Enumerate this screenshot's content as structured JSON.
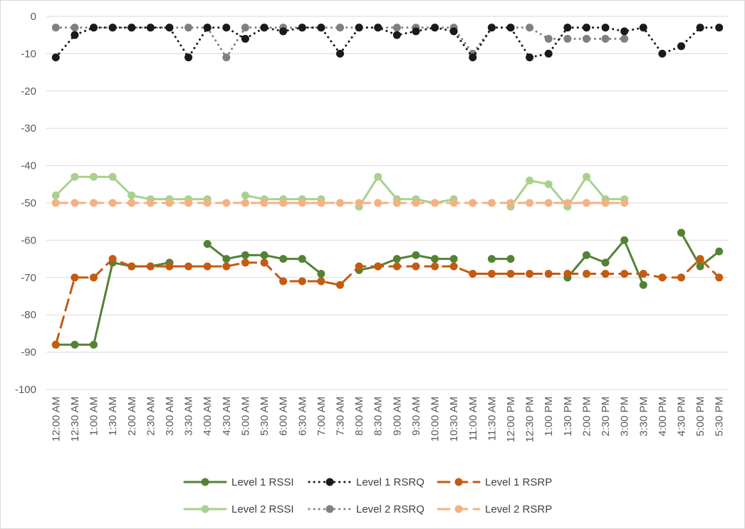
{
  "chart_data": {
    "type": "line",
    "title": "",
    "xlabel": "",
    "ylabel": "",
    "ylim": [
      -100,
      0
    ],
    "y_ticks": [
      0,
      -10,
      -20,
      -30,
      -40,
      -50,
      -60,
      -70,
      -80,
      -90,
      -100
    ],
    "grid": "horizontal",
    "legend_position": "bottom",
    "categories": [
      "12:00 AM",
      "12:30 AM",
      "1:00 AM",
      "1:30 AM",
      "2:00 AM",
      "2:30 AM",
      "3:00 AM",
      "3:30 AM",
      "4:00 AM",
      "4:30 AM",
      "5:00 AM",
      "5:30 AM",
      "6:00 AM",
      "6:30 AM",
      "7:00 AM",
      "7:30 AM",
      "8:00 AM",
      "8:30 AM",
      "9:00 AM",
      "9:30 AM",
      "10:00 AM",
      "10:30 AM",
      "11:00 AM",
      "11:30 AM",
      "12:00 PM",
      "12:30 PM",
      "1:00 PM",
      "1:30 PM",
      "2:00 PM",
      "2:30 PM",
      "3:00 PM",
      "3:30 PM",
      "4:00 PM",
      "4:30 PM",
      "5:00 PM",
      "5:30 PM"
    ],
    "series": [
      {
        "name": "Level 2 RSSI",
        "color": "#a9d18e",
        "style": "solid",
        "values": [
          -48,
          -43,
          -43,
          -43,
          -48,
          -49,
          -49,
          -49,
          -49,
          null,
          -48,
          -49,
          -49,
          -49,
          -49,
          null,
          -51,
          -43,
          -49,
          -49,
          -50,
          -49,
          null,
          null,
          -51,
          -44,
          -45,
          -51,
          -43,
          -49,
          -49,
          null,
          null,
          null,
          null,
          null
        ]
      },
      {
        "name": "Level 2 RSRQ",
        "color": "#808080",
        "style": "dotted",
        "values": [
          -3,
          -3,
          -3,
          -3,
          -3,
          -3,
          -3,
          -3,
          -3,
          -11,
          -3,
          -3,
          -3,
          -3,
          -3,
          -3,
          -3,
          -3,
          -3,
          -3,
          -3,
          -3,
          -10,
          -3,
          -3,
          -3,
          -6,
          -6,
          -6,
          -6,
          -6,
          null,
          null,
          null,
          null,
          null
        ]
      },
      {
        "name": "Level 2 RSRP",
        "color": "#f4b183",
        "style": "dashed",
        "values": [
          -50,
          -50,
          -50,
          -50,
          -50,
          -50,
          -50,
          -50,
          -50,
          -50,
          -50,
          -50,
          -50,
          -50,
          -50,
          -50,
          -50,
          -50,
          -50,
          -50,
          -50,
          -50,
          -50,
          -50,
          -50,
          -50,
          -50,
          -50,
          -50,
          -50,
          -50,
          null,
          null,
          null,
          null,
          null
        ]
      },
      {
        "name": "Level 1 RSSI",
        "color": "#548235",
        "style": "solid",
        "values": [
          -88,
          -88,
          -88,
          -66,
          -67,
          -67,
          -66,
          null,
          -61,
          -65,
          -64,
          -64,
          -65,
          -65,
          -69,
          null,
          -68,
          -67,
          -65,
          -64,
          -65,
          -65,
          null,
          -65,
          -65,
          null,
          null,
          -70,
          -64,
          -66,
          -60,
          -72,
          null,
          -58,
          -67,
          -63
        ]
      },
      {
        "name": "Level 1 RSRQ",
        "color": "#1a1a1a",
        "style": "dotted",
        "values": [
          -11,
          -5,
          -3,
          -3,
          -3,
          -3,
          -3,
          -11,
          -3,
          -3,
          -6,
          -3,
          -4,
          -3,
          -3,
          -10,
          -3,
          -3,
          -5,
          -4,
          -3,
          -4,
          -11,
          -3,
          -3,
          -11,
          -10,
          -3,
          -3,
          -3,
          -4,
          -3,
          -10,
          -8,
          -3,
          -3
        ]
      },
      {
        "name": "Level 1 RSRP",
        "color": "#c55a11",
        "style": "dashed",
        "values": [
          -88,
          -70,
          -70,
          -65,
          -67,
          -67,
          -67,
          -67,
          -67,
          -67,
          -66,
          -66,
          -71,
          -71,
          -71,
          -72,
          -67,
          -67,
          -67,
          -67,
          -67,
          -67,
          -69,
          -69,
          -69,
          -69,
          -69,
          -69,
          -69,
          -69,
          -69,
          -69,
          -70,
          -70,
          -65,
          -70
        ]
      }
    ],
    "legend": [
      {
        "name": "Level 1 RSSI",
        "color": "#548235",
        "style": "solid"
      },
      {
        "name": "Level 1 RSRQ",
        "color": "#1a1a1a",
        "style": "dotted"
      },
      {
        "name": "Level 1 RSRP",
        "color": "#c55a11",
        "style": "dashed"
      },
      {
        "name": "Level 2 RSSI",
        "color": "#a9d18e",
        "style": "solid"
      },
      {
        "name": "Level 2 RSRQ",
        "color": "#808080",
        "style": "dotted"
      },
      {
        "name": "Level 2 RSRP",
        "color": "#f4b183",
        "style": "dashed"
      }
    ]
  }
}
